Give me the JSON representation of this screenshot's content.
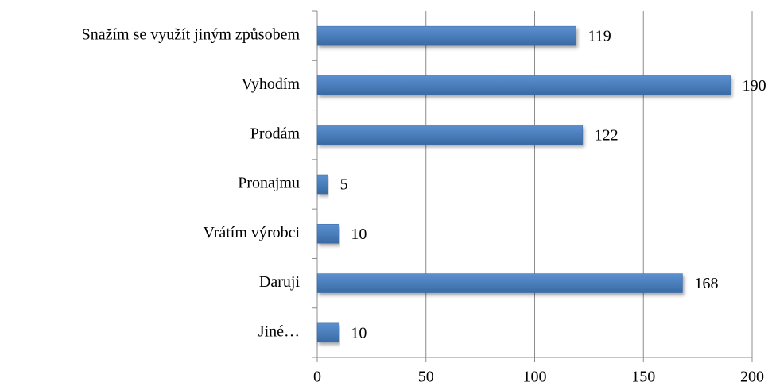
{
  "chart_data": {
    "type": "bar",
    "orientation": "horizontal",
    "categories": [
      "Snažím se využít jiným způsobem",
      "Vyhodím",
      "Prodám",
      "Pronajmu",
      "Vrátím výrobci",
      "Daruji",
      "Jiné…"
    ],
    "values": [
      119,
      190,
      122,
      5,
      10,
      168,
      10
    ],
    "color": "#4a7ebb",
    "xlim": [
      0,
      200
    ],
    "xticks": [
      0,
      50,
      100,
      150,
      200
    ],
    "grid": true
  }
}
